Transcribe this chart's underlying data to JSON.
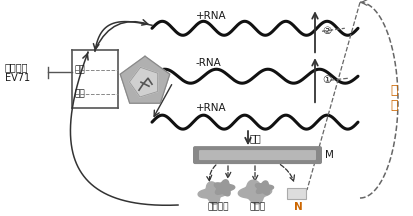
{
  "bg_color": "#ffffff",
  "virus_label_line1": "肠道病毒",
  "virus_label_line2": "EV71",
  "nucleic_acid_label": "核酸",
  "coat_label": "衣壳",
  "plus_rna_top_label": "+RNA",
  "minus_rna_label": "-RNA",
  "plus_rna_bot_label": "+RNA",
  "translate_label": "翻译",
  "m_label": "M",
  "coat_protein_label": "衣壳蛋白",
  "enzyme_label": "蛋白酶",
  "catalyze_label1": "催",
  "catalyze_label2": "化",
  "n_label": "N",
  "circle1_label": "①",
  "circle2_label": "②",
  "wave_color": "#111111",
  "arrow_color": "#333333",
  "dashed_color": "#666666",
  "text_color": "#1a1a1a",
  "catalyze_color": "#cc6600",
  "n_color": "#cc6600",
  "box_color": "#555555",
  "virus_fill": "#b0b0b0",
  "virus_fill2": "#d0d0d0",
  "ribosome_fill": "#aaaaaa",
  "protein_fill": "#999999"
}
